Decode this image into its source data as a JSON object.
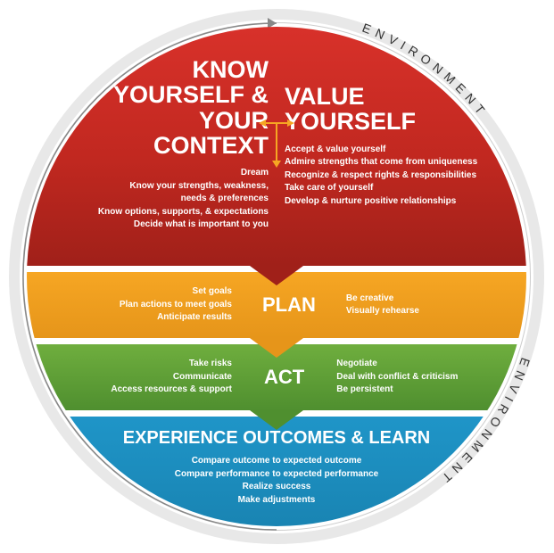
{
  "env_label": "ENVIRONMENT",
  "red": {
    "left_title": "KNOW\nYOURSELF &\nYOUR CONTEXT",
    "right_title": "VALUE\nYOURSELF",
    "left_lines": [
      "Dream",
      "Know your strengths, weakness,",
      "needs & preferences",
      "Know options, supports, & expectations",
      "Decide what is important to you"
    ],
    "right_lines": [
      "Accept & value yourself",
      "Admire strengths that come from uniqueness",
      "Recognize & respect rights & responsibilities",
      "Take care of yourself",
      "Develop & nurture positive relationships"
    ],
    "bg_top": "#d8312a",
    "bg_bottom": "#a02019"
  },
  "orange": {
    "title": "PLAN",
    "left_lines": [
      "Set goals",
      "Plan actions to meet goals",
      "Anticipate results"
    ],
    "right_lines": [
      "Be creative",
      "Visually rehearse"
    ],
    "bg_top": "#f6a623",
    "bg_bottom": "#e6951a"
  },
  "green": {
    "title": "ACT",
    "left_lines": [
      "Take risks",
      "Communicate",
      "Access resources & support"
    ],
    "right_lines": [
      "Negotiate",
      "Deal with conflict & criticism",
      "Be persistent"
    ],
    "bg_top": "#6fae3e",
    "bg_bottom": "#4f8f2f"
  },
  "blue": {
    "title": "EXPERIENCE OUTCOMES & LEARN",
    "lines": [
      "Compare outcome to expected outcome",
      "Compare performance to expected performance",
      "Realize success",
      "Make adjustments"
    ],
    "bg_top": "#1f95c8",
    "bg_bottom": "#177fac"
  },
  "ring_color": "#e8e8e8",
  "arrow_color": "#888888",
  "mini_arrow_color": "#f6a623"
}
